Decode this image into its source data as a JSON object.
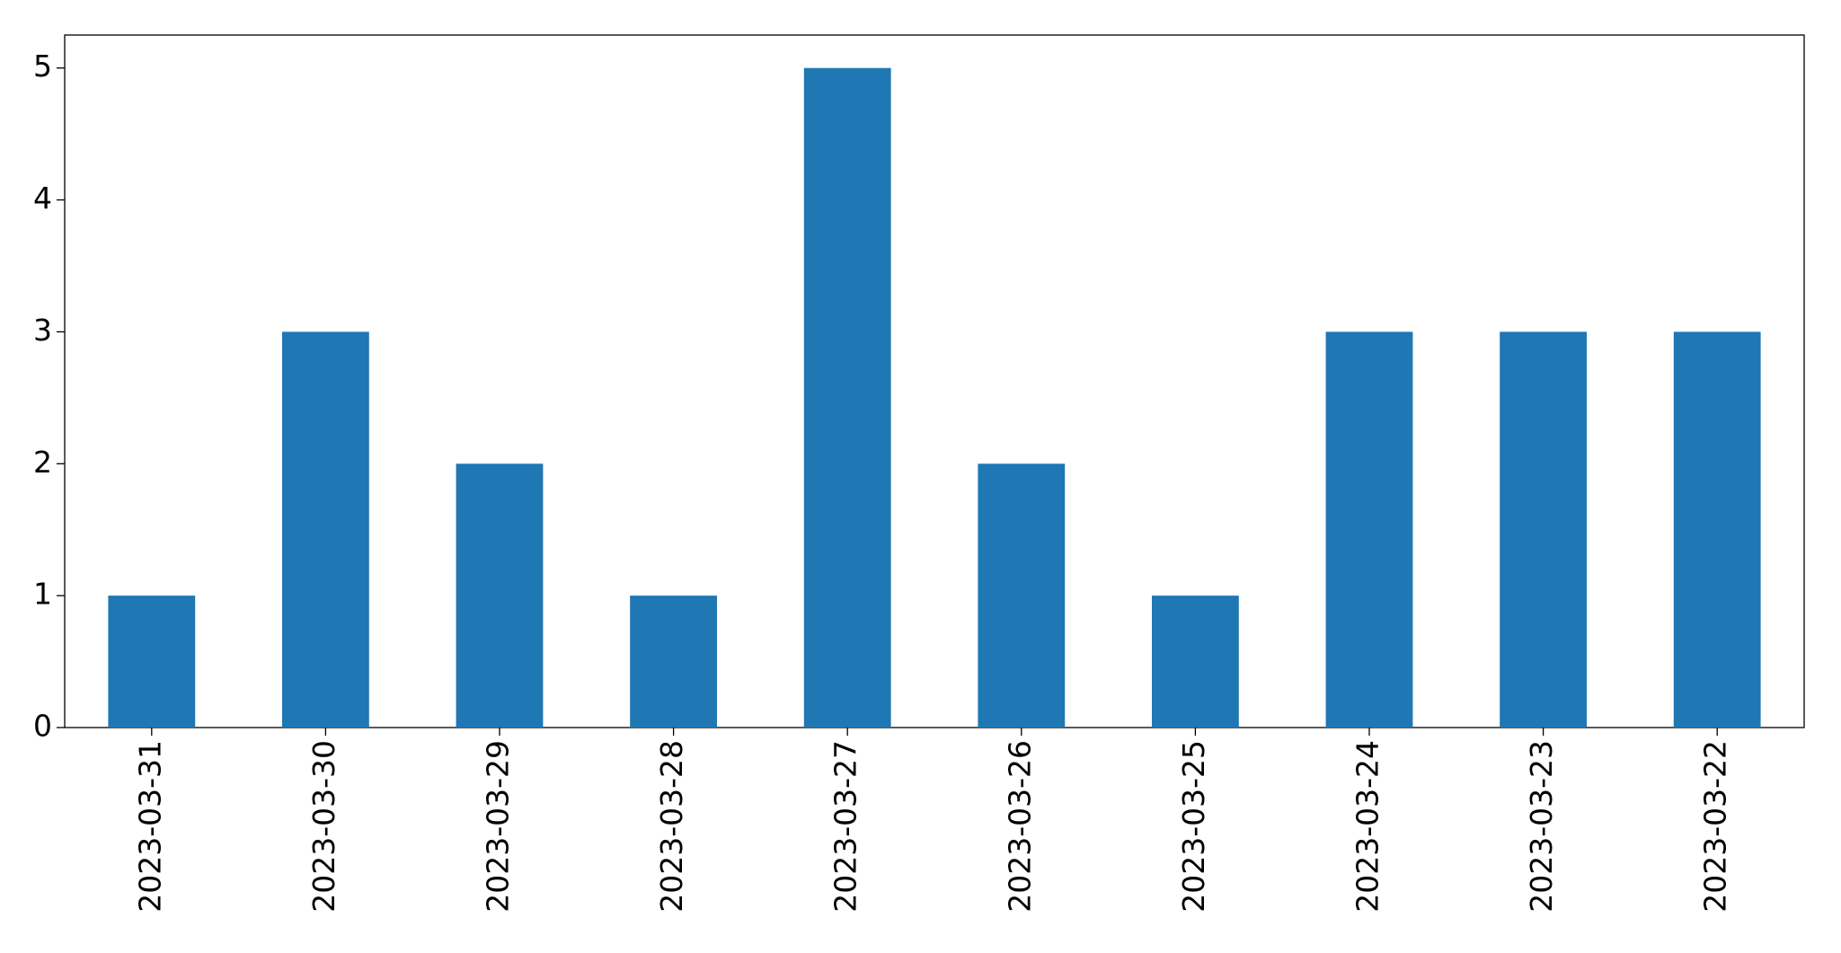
{
  "chart_data": {
    "type": "bar",
    "categories": [
      "2023-03-31",
      "2023-03-30",
      "2023-03-29",
      "2023-03-28",
      "2023-03-27",
      "2023-03-26",
      "2023-03-25",
      "2023-03-24",
      "2023-03-23",
      "2023-03-22"
    ],
    "values": [
      1,
      3,
      2,
      1,
      5,
      2,
      1,
      3,
      3,
      3
    ],
    "color": "#1f77b4",
    "ylim": [
      0,
      5.25
    ],
    "yticks": [
      0,
      1,
      2,
      3,
      4,
      5
    ],
    "grid": false
  }
}
